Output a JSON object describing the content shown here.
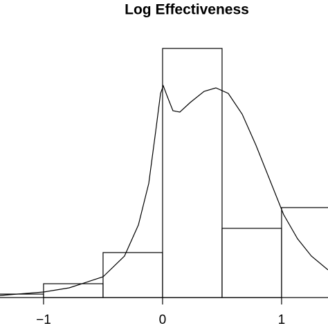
{
  "chart_data": {
    "type": "histogram",
    "title": "Log Effectiveness",
    "bins": [
      -1.5,
      -1,
      -0.5,
      0,
      0.5,
      1,
      1.5
    ],
    "counts": [
      1,
      4,
      13,
      72,
      20,
      26
    ],
    "density": {
      "x": [
        -1.366,
        -1,
        -0.785,
        -0.5,
        -0.32,
        -0.203,
        -0.116,
        -0.058,
        -0.017,
        0.006,
        0.041,
        0.087,
        0.145,
        0.233,
        0.349,
        0.448,
        0.552,
        0.669,
        0.785,
        0.901,
        1.017,
        1.134,
        1.25,
        1.39
      ],
      "y": [
        0.6,
        1.6,
        2.8,
        6,
        12,
        21,
        33,
        48,
        59,
        61.2,
        58,
        54,
        53.6,
        56.4,
        59.6,
        60.6,
        59,
        53,
        44,
        34,
        24,
        17,
        12,
        8
      ]
    },
    "color": "#000000",
    "xlim": [
      -1.366,
      1.39
    ],
    "ylim": [
      0,
      80
    ],
    "xticks": [
      {
        "value": -1,
        "label": "−1"
      },
      0,
      1
    ]
  }
}
